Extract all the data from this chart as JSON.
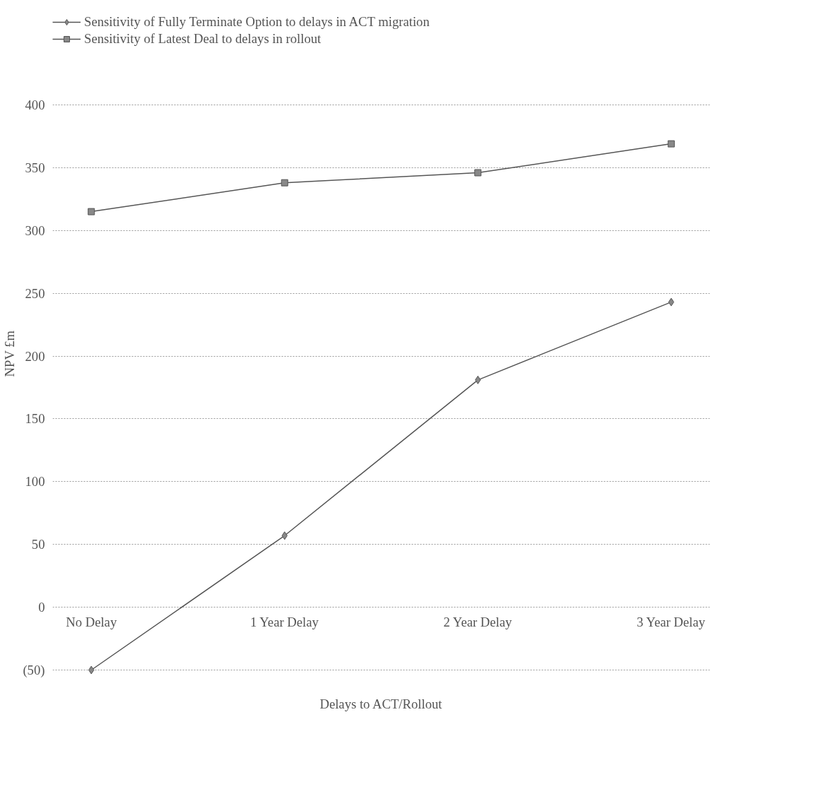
{
  "chart_data": {
    "type": "line",
    "xlabel": "Delays to ACT/Rollout",
    "ylabel": "NPV £m",
    "categories": [
      "No Delay",
      "1 Year Delay",
      "2 Year Delay",
      "3 Year Delay"
    ],
    "series": [
      {
        "name": "Sensitivity of Fully Terminate Option to delays in ACT migration",
        "color": "#555555",
        "marker": "diamond",
        "values": [
          -50,
          57,
          181,
          243
        ]
      },
      {
        "name": "Sensitivity of Latest Deal to delays in rollout",
        "color": "#555555",
        "marker": "square",
        "values": [
          315,
          338,
          346,
          369
        ]
      }
    ],
    "ylim": [
      -50,
      400
    ],
    "yticks": [
      {
        "value": -50,
        "label": "(50)"
      },
      0,
      50,
      100,
      150,
      200,
      250,
      300,
      350,
      400
    ],
    "grid": "y",
    "legend": "top",
    "line_style": "solid"
  }
}
